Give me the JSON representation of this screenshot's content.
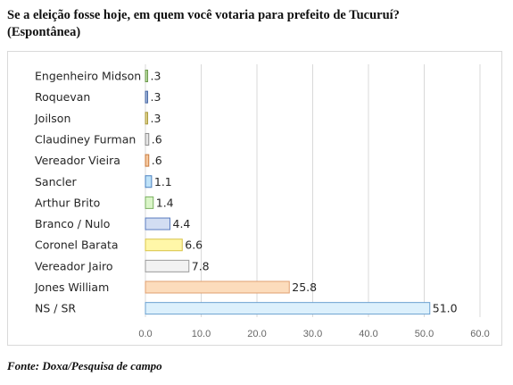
{
  "title_line1": "Se a eleição fosse hoje, em quem você votaria para prefeito de Tucuruí?",
  "title_line2": "(Espontânea)",
  "source": "Fonte: Doxa/Pesquisa de campo",
  "chart_data": {
    "type": "bar",
    "orientation": "horizontal",
    "categories": [
      "Engenheiro Midson",
      "Roquevan",
      "Joilson",
      "Claudiney Furman",
      "Vereador Vieira",
      "Sancler",
      "Arthur Brito",
      "Branco / Nulo",
      "Coronel Barata",
      "Vereador Jairo",
      "Jones William",
      "NS / SR"
    ],
    "values": [
      0.3,
      0.3,
      0.3,
      0.6,
      0.6,
      1.1,
      1.4,
      4.4,
      6.6,
      7.8,
      25.8,
      51.0
    ],
    "value_labels": [
      ".3",
      ".3",
      ".3",
      ".6",
      ".6",
      "1.1",
      "1.4",
      "4.4",
      "6.6",
      "7.8",
      "25.8",
      "51.0"
    ],
    "bar_colors": [
      {
        "fill": "#b5d99c",
        "stroke": "#6e9a4e"
      },
      {
        "fill": "#9bb0d6",
        "stroke": "#4a6aa5"
      },
      {
        "fill": "#e0d08a",
        "stroke": "#a89a3e"
      },
      {
        "fill": "#e6e6e6",
        "stroke": "#8c8c8c"
      },
      {
        "fill": "#f6c9a0",
        "stroke": "#c87a3e"
      },
      {
        "fill": "#bfe2f8",
        "stroke": "#4a80c0"
      },
      {
        "fill": "#daf5c8",
        "stroke": "#7ab060"
      },
      {
        "fill": "#d2ddf2",
        "stroke": "#5a7cc0"
      },
      {
        "fill": "#fff7a8",
        "stroke": "#d8c44a"
      },
      {
        "fill": "#f2f2f2",
        "stroke": "#9a9a9a"
      },
      {
        "fill": "#fcdcbc",
        "stroke": "#e0a070"
      },
      {
        "fill": "#dcf0fc",
        "stroke": "#6aa0d0"
      }
    ],
    "xlim": [
      0,
      60
    ],
    "xticks": [
      "0.0",
      "10.0",
      "20.0",
      "30.0",
      "40.0",
      "50.0",
      "60.0"
    ],
    "grid": true
  }
}
